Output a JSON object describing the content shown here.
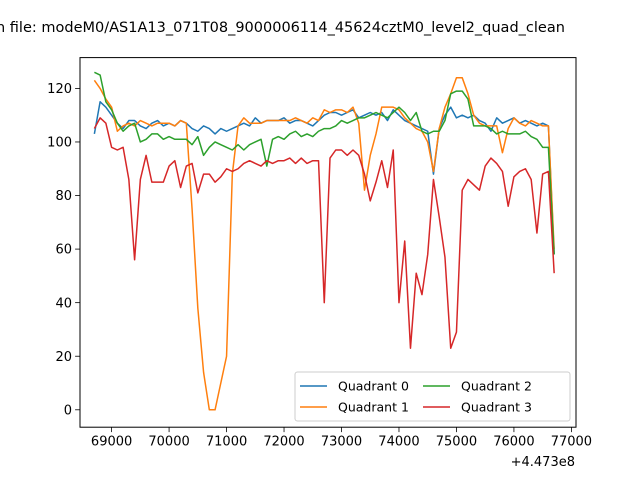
{
  "chart_data": {
    "type": "line",
    "title": "n file: modeM0/AS1A13_071T08_9000006114_45624cztM0_level2_quad_clean",
    "xlabel": "",
    "ylabel": "",
    "offset_label": "+4.473e8",
    "xlim": [
      68450,
      77080
    ],
    "ylim": [
      -6.5,
      131.5
    ],
    "xticks": [
      69000,
      70000,
      71000,
      72000,
      73000,
      74000,
      75000,
      76000,
      77000
    ],
    "xtick_labels": [
      "69000",
      "70000",
      "71000",
      "72000",
      "73000",
      "74000",
      "75000",
      "76000",
      "77000"
    ],
    "yticks": [
      0,
      20,
      40,
      60,
      80,
      100,
      120
    ],
    "ytick_labels": [
      "0",
      "20",
      "40",
      "60",
      "80",
      "100",
      "120"
    ],
    "grid": false,
    "legend": {
      "placement": "bottom-right",
      "columns": 2
    },
    "series": [
      {
        "name": "Quadrant 0",
        "color": "#1f77b4",
        "x": [
          68700,
          68800,
          68900,
          69000,
          69100,
          69200,
          69300,
          69400,
          69500,
          69600,
          69700,
          69800,
          69900,
          70000,
          70100,
          70200,
          70300,
          70400,
          70500,
          70600,
          70700,
          70800,
          70900,
          71000,
          71100,
          71200,
          71300,
          71400,
          71500,
          71600,
          71700,
          71800,
          71900,
          72000,
          72100,
          72200,
          72300,
          72400,
          72500,
          72600,
          72700,
          72800,
          72900,
          73000,
          73100,
          73200,
          73300,
          73400,
          73500,
          73600,
          73700,
          73800,
          73900,
          74000,
          74100,
          74200,
          74300,
          74400,
          74500,
          74600,
          74700,
          74800,
          74900,
          75000,
          75100,
          75200,
          75300,
          75400,
          75500,
          75600,
          75700,
          75800,
          75900,
          76000,
          76100,
          76200,
          76300,
          76400,
          76500,
          76600,
          76700
        ],
        "y": [
          103,
          115,
          113,
          110,
          107,
          105,
          108,
          108,
          106,
          105,
          107,
          108,
          106,
          107,
          106,
          108,
          107,
          105,
          104,
          106,
          105,
          103,
          105,
          104,
          105,
          106,
          107,
          106,
          109,
          107,
          108,
          108,
          108,
          109,
          107,
          108,
          108,
          107,
          106,
          108,
          110,
          111,
          111,
          110,
          111,
          112,
          109,
          110,
          111,
          110,
          111,
          108,
          112,
          110,
          108,
          107,
          106,
          105,
          104,
          88,
          105,
          110,
          113,
          109,
          110,
          109,
          110,
          108,
          107,
          104,
          109,
          107,
          108,
          109,
          107,
          108,
          107,
          106,
          107,
          106,
          58
        ]
      },
      {
        "name": "Quadrant 1",
        "color": "#ff7f0e",
        "x": [
          68700,
          68800,
          68900,
          69000,
          69100,
          69200,
          69300,
          69400,
          69500,
          69600,
          69700,
          69800,
          69900,
          70000,
          70100,
          70200,
          70300,
          70400,
          70500,
          70600,
          70700,
          70800,
          70900,
          71000,
          71100,
          71200,
          71300,
          71400,
          71500,
          71600,
          71700,
          71800,
          71900,
          72000,
          72100,
          72200,
          72300,
          72400,
          72500,
          72600,
          72700,
          72800,
          72900,
          73000,
          73100,
          73200,
          73300,
          73400,
          73500,
          73600,
          73700,
          73800,
          73900,
          74000,
          74100,
          74200,
          74300,
          74400,
          74500,
          74600,
          74700,
          74800,
          74900,
          75000,
          75100,
          75200,
          75300,
          75400,
          75500,
          75600,
          75700,
          75800,
          75900,
          76000,
          76100,
          76200,
          76300,
          76400,
          76500,
          76600,
          76700
        ],
        "y": [
          123,
          120,
          116,
          113,
          104,
          106,
          107,
          106,
          108,
          107,
          106,
          107,
          107,
          107,
          106,
          108,
          107,
          75,
          38,
          14,
          0,
          0,
          10,
          20,
          88,
          106,
          109,
          107,
          107,
          107,
          108,
          108,
          108,
          108,
          108,
          109,
          108,
          107,
          109,
          108,
          112,
          111,
          112,
          112,
          111,
          113,
          107,
          82,
          95,
          103,
          113,
          113,
          113,
          112,
          109,
          107,
          105,
          104,
          100,
          89,
          105,
          113,
          118,
          124,
          124,
          118,
          110,
          107,
          106,
          106,
          106,
          96,
          105,
          109,
          107,
          106,
          108,
          107,
          106,
          106,
          60
        ]
      },
      {
        "name": "Quadrant 2",
        "color": "#2ca02c",
        "x": [
          68700,
          68800,
          68900,
          69000,
          69100,
          69200,
          69300,
          69400,
          69500,
          69600,
          69700,
          69800,
          69900,
          70000,
          70100,
          70200,
          70300,
          70400,
          70500,
          70600,
          70700,
          70800,
          70900,
          71000,
          71100,
          71200,
          71300,
          71400,
          71500,
          71600,
          71700,
          71800,
          71900,
          72000,
          72100,
          72200,
          72300,
          72400,
          72500,
          72600,
          72700,
          72800,
          72900,
          73000,
          73100,
          73200,
          73300,
          73400,
          73500,
          73600,
          73700,
          73800,
          73900,
          74000,
          74100,
          74200,
          74300,
          74400,
          74500,
          74600,
          74700,
          74800,
          74900,
          75000,
          75100,
          75200,
          75300,
          75400,
          75500,
          75600,
          75700,
          75800,
          75900,
          76000,
          76100,
          76200,
          76300,
          76400,
          76500,
          76600,
          76700
        ],
        "y": [
          126,
          125,
          115,
          112,
          107,
          104,
          106,
          107,
          100,
          101,
          103,
          103,
          101,
          102,
          101,
          101,
          101,
          99,
          102,
          95,
          98,
          100,
          99,
          98,
          97,
          99,
          97,
          99,
          100,
          101,
          91,
          101,
          102,
          101,
          103,
          104,
          102,
          103,
          102,
          104,
          105,
          105,
          106,
          108,
          107,
          108,
          109,
          109,
          110,
          111,
          110,
          109,
          111,
          113,
          111,
          108,
          111,
          104,
          103,
          104,
          104,
          108,
          118,
          119,
          119,
          116,
          106,
          106,
          106,
          105,
          103,
          104,
          103,
          103,
          103,
          104,
          102,
          101,
          98,
          98,
          58
        ]
      },
      {
        "name": "Quadrant 3",
        "color": "#d62728",
        "x": [
          68700,
          68800,
          68900,
          69000,
          69100,
          69200,
          69300,
          69400,
          69500,
          69600,
          69700,
          69800,
          69900,
          70000,
          70100,
          70200,
          70300,
          70400,
          70500,
          70600,
          70700,
          70800,
          70900,
          71000,
          71100,
          71200,
          71300,
          71400,
          71500,
          71600,
          71700,
          71800,
          71900,
          72000,
          72100,
          72200,
          72300,
          72400,
          72500,
          72600,
          72700,
          72800,
          72900,
          73000,
          73100,
          73200,
          73300,
          73400,
          73500,
          73600,
          73700,
          73800,
          73900,
          74000,
          74100,
          74200,
          74300,
          74400,
          74500,
          74600,
          74700,
          74800,
          74900,
          75000,
          75100,
          75200,
          75300,
          75400,
          75500,
          75600,
          75700,
          75800,
          75900,
          76000,
          76100,
          76200,
          76300,
          76400,
          76500,
          76600,
          76700
        ],
        "y": [
          105,
          109,
          107,
          98,
          97,
          98,
          86,
          56,
          86,
          95,
          85,
          85,
          85,
          91,
          93,
          83,
          91,
          92,
          81,
          88,
          88,
          85,
          87,
          90,
          89,
          90,
          92,
          93,
          92,
          91,
          93,
          92,
          93,
          93,
          94,
          92,
          94,
          92,
          93,
          93,
          40,
          94,
          97,
          97,
          95,
          97,
          95,
          88,
          78,
          85,
          93,
          83,
          97,
          40,
          63,
          23,
          51,
          43,
          58,
          86,
          72,
          57,
          23,
          29,
          82,
          86,
          84,
          82,
          91,
          94,
          92,
          89,
          76,
          87,
          89,
          90,
          86,
          66,
          88,
          89,
          51
        ]
      }
    ]
  }
}
